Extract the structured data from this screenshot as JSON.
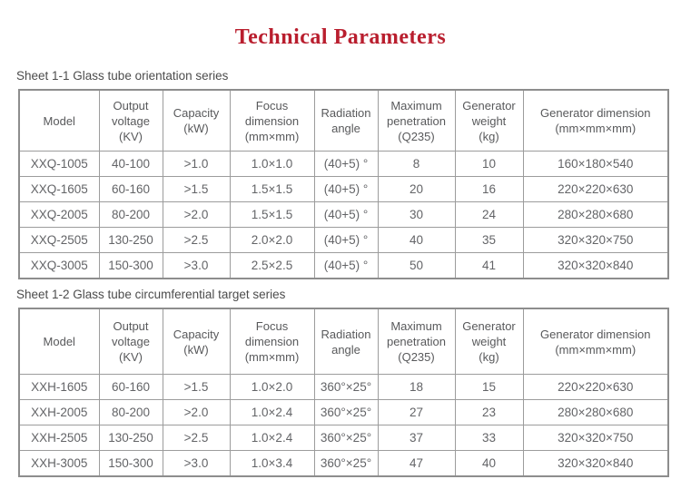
{
  "title": {
    "text": "Technical Parameters",
    "color": "#b91e2e"
  },
  "tables": [
    {
      "caption": "Sheet 1-1 Glass tube orientation series",
      "headers": [
        "Model",
        "Output\nvoltage\n(KV)",
        "Capacity\n(kW)",
        "Focus\ndimension\n(mm×mm)",
        "Radiation\nangle",
        "Maximum\npenetration\n(Q235)",
        "Generator\nweight\n(kg)",
        "Generator dimension\n(mm×mm×mm)"
      ],
      "rows": [
        [
          "XXQ-1005",
          "40-100",
          ">1.0",
          "1.0×1.0",
          "(40+5) °",
          "8",
          "10",
          "160×180×540"
        ],
        [
          "XXQ-1605",
          "60-160",
          ">1.5",
          "1.5×1.5",
          "(40+5) °",
          "20",
          "16",
          "220×220×630"
        ],
        [
          "XXQ-2005",
          "80-200",
          ">2.0",
          "1.5×1.5",
          "(40+5) °",
          "30",
          "24",
          "280×280×680"
        ],
        [
          "XXQ-2505",
          "130-250",
          ">2.5",
          "2.0×2.0",
          "(40+5) °",
          "40",
          "35",
          "320×320×750"
        ],
        [
          "XXQ-3005",
          "150-300",
          ">3.0",
          "2.5×2.5",
          "(40+5) °",
          "50",
          "41",
          "320×320×840"
        ]
      ]
    },
    {
      "caption": "Sheet 1-2 Glass tube circumferential target series",
      "headers": [
        "Model",
        "Output\nvoltage\n(KV)",
        "Capacity\n(kW)",
        "Focus\ndimension\n(mm×mm)",
        "Radiation\nangle",
        "Maximum\npenetration\n(Q235)",
        "Generator\nweight\n(kg)",
        "Generator dimension\n(mm×mm×mm)"
      ],
      "rows": [
        [
          "XXH-1605",
          "60-160",
          ">1.5",
          "1.0×2.0",
          "360°×25°",
          "18",
          "15",
          "220×220×630"
        ],
        [
          "XXH-2005",
          "80-200",
          ">2.0",
          "1.0×2.4",
          "360°×25°",
          "27",
          "23",
          "280×280×680"
        ],
        [
          "XXH-2505",
          "130-250",
          ">2.5",
          "1.0×2.4",
          "360°×25°",
          "37",
          "33",
          "320×320×750"
        ],
        [
          "XXH-3005",
          "150-300",
          ">3.0",
          "1.0×3.4",
          "360°×25°",
          "47",
          "40",
          "320×320×840"
        ]
      ]
    }
  ]
}
